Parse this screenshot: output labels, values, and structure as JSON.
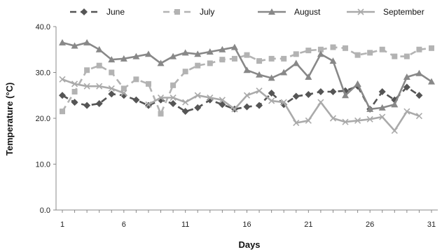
{
  "chart_data": {
    "type": "line",
    "title": "",
    "xlabel": "Days",
    "ylabel": "Temperature (°C)",
    "x": [
      1,
      2,
      3,
      4,
      5,
      6,
      7,
      8,
      9,
      10,
      11,
      12,
      13,
      14,
      15,
      16,
      17,
      18,
      19,
      20,
      21,
      22,
      23,
      24,
      25,
      26,
      27,
      28,
      29,
      30,
      31
    ],
    "xticks": [
      1,
      6,
      11,
      16,
      21,
      26,
      31
    ],
    "xlim": [
      1,
      31
    ],
    "ylim": [
      0,
      40
    ],
    "yticks": [
      "0.0",
      "10.0",
      "20.0",
      "30.0",
      "40.0"
    ],
    "legend_position": "top",
    "grid": false,
    "series": [
      {
        "name": "June",
        "color": "#555555",
        "dash": "dashed",
        "marker": "diamond",
        "values": [
          25.0,
          23.5,
          22.8,
          23.2,
          25.3,
          25.0,
          24.0,
          22.8,
          24.0,
          23.2,
          21.5,
          22.3,
          24.0,
          23.0,
          22.0,
          22.5,
          22.8,
          25.5,
          23.0,
          24.8,
          25.2,
          25.8,
          25.8,
          26.0,
          27.0,
          22.0,
          25.8,
          24.0,
          26.8,
          25.0,
          null
        ]
      },
      {
        "name": "July",
        "color": "#b3b3b3",
        "dash": "dashed",
        "marker": "square",
        "values": [
          21.5,
          25.8,
          30.5,
          31.5,
          30.0,
          26.5,
          28.5,
          27.5,
          21.0,
          27.2,
          30.2,
          31.5,
          32.0,
          32.8,
          33.0,
          33.8,
          32.5,
          33.0,
          33.0,
          34.0,
          34.8,
          35.0,
          35.5,
          35.3,
          33.8,
          34.3,
          35.0,
          33.5,
          33.5,
          35.0,
          35.3
        ]
      },
      {
        "name": "August",
        "color": "#888888",
        "dash": "solid",
        "marker": "triangle",
        "values": [
          36.5,
          35.8,
          36.5,
          35.0,
          32.8,
          33.0,
          33.5,
          34.0,
          32.0,
          33.5,
          34.3,
          34.0,
          34.5,
          35.0,
          35.5,
          30.5,
          29.5,
          28.8,
          30.0,
          32.0,
          29.0,
          34.0,
          32.5,
          25.0,
          27.5,
          22.0,
          22.3,
          23.0,
          29.0,
          29.8,
          28.0
        ]
      },
      {
        "name": "September",
        "color": "#aaaaaa",
        "dash": "solid",
        "marker": "x",
        "values": [
          28.5,
          27.5,
          27.0,
          27.0,
          26.5,
          25.5,
          null,
          23.0,
          24.5,
          24.5,
          23.5,
          25.0,
          24.5,
          24.0,
          22.0,
          25.0,
          26.0,
          23.8,
          23.5,
          19.0,
          19.5,
          23.5,
          20.0,
          19.2,
          19.5,
          19.8,
          20.3,
          17.3,
          21.5,
          20.5,
          null
        ]
      }
    ]
  }
}
